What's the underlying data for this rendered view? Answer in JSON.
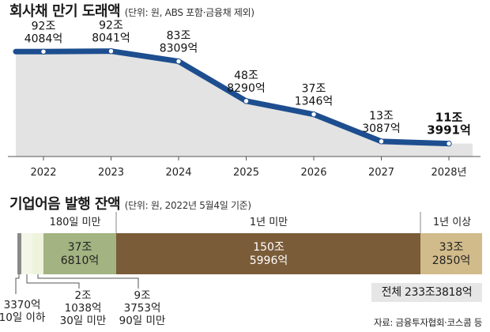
{
  "chart_data": [
    {
      "type": "area",
      "title": "회사채 만기 도래액",
      "subtitle": "(단위: 원, ABS 포함·금융채 제외)",
      "x": [
        "2022",
        "2023",
        "2024",
        "2025",
        "2026",
        "2027",
        "2028년"
      ],
      "values": [
        92.4084,
        92.8041,
        83.8309,
        48.829,
        37.1346,
        13.3087,
        11.3991
      ],
      "value_labels": [
        [
          "92조",
          "4084억"
        ],
        [
          "92조",
          "8041억"
        ],
        [
          "83조",
          "8309억"
        ],
        [
          "48조",
          "8290억"
        ],
        [
          "37조",
          "1346억"
        ],
        [
          "13조",
          "3087억"
        ],
        [
          "11조",
          "3991억"
        ]
      ],
      "ylim": [
        0,
        110
      ],
      "colors": {
        "line": "#1d4e8f",
        "area": "#e3e3e3"
      }
    },
    {
      "type": "bar",
      "title": "기업어음 발행 잔액",
      "subtitle": "(단위: 원, 2022년 5월4일 기준)",
      "group_labels": [
        "180일 미만",
        "1년 미만",
        "1년 이상"
      ],
      "segments": [
        {
          "label": [
            "3370억",
            "10일 이하"
          ],
          "value": 0.337,
          "color": "#8a8a8a"
        },
        {
          "label": [
            "2조",
            "1038억",
            "30일 미만"
          ],
          "value": 2.1038,
          "color": "#ffffff"
        },
        {
          "label": [
            "9조",
            "3753억",
            "90일 미만"
          ],
          "value": 9.3753,
          "color": "#eef3dc"
        },
        {
          "label": [
            "37조",
            "6810억"
          ],
          "value": 37.681,
          "color": "#a3b381"
        },
        {
          "label": [
            "150조",
            "5996억"
          ],
          "value": 150.5996,
          "color": "#7a5c38"
        },
        {
          "label": [
            "33조",
            "2850억"
          ],
          "value": 33.285,
          "color": "#d2bb8a"
        }
      ],
      "total": "전체 233조3818억"
    }
  ],
  "source": "자료: 금융투자협회·코스콤 등"
}
